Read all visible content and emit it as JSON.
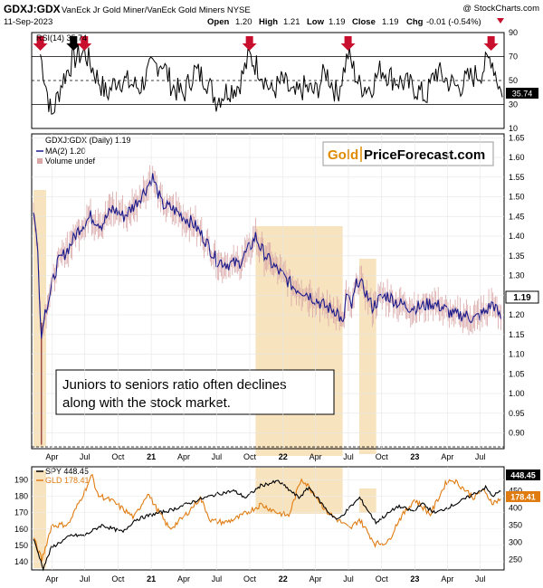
{
  "header": {
    "symbol": "GDXJ:GDX",
    "description": "VanEck Jr Gold Miner/VanEck Gold Miners NYSE",
    "date": "11-Sep-2023",
    "open_label": "Open",
    "open": "1.20",
    "high_label": "High",
    "high": "1.21",
    "low_label": "Low",
    "low": "1.19",
    "close_label": "Close",
    "close": "1.19",
    "chg_label": "Chg",
    "chg": "-0.01 (-0.54%)",
    "watermark": "@ StockCharts.com"
  },
  "colors": {
    "rsi": "#000000",
    "price": "#1a1a8c",
    "ma": "#1a1a8c",
    "bars": "#d9a5a5",
    "highlight": "#f6dfb3",
    "arrow_red": "#c8102e",
    "arrow_black": "#000000",
    "spy": "#000000",
    "gld": "#e07b10"
  },
  "logo": {
    "part1": "Gold",
    "part2": "PriceForecast.com"
  },
  "annotation": {
    "line1": "Juniors to seniors ratio often declines",
    "line2": "along with the stock market."
  },
  "x_axis": [
    "Apr",
    "Jul",
    "Oct",
    "21",
    "Apr",
    "Jul",
    "Oct",
    "22",
    "Apr",
    "Jul",
    "Oct",
    "23",
    "Apr",
    "Jul"
  ],
  "chart_data": [
    {
      "type": "line",
      "title": "RSI(14) 35.74",
      "current_label": "35.74",
      "ylim": [
        10,
        90
      ],
      "yticks": [
        10,
        30,
        50,
        70,
        90
      ],
      "reference_lines": [
        30,
        50,
        70
      ],
      "markers": [
        {
          "date": "2020-03",
          "color": "red"
        },
        {
          "date": "2020-06",
          "color": "black"
        },
        {
          "date": "2020-07",
          "color": "red"
        },
        {
          "date": "2021-10",
          "color": "red"
        },
        {
          "date": "2022-07",
          "color": "red"
        },
        {
          "date": "2023-08",
          "color": "red"
        }
      ],
      "series": [
        {
          "x": [
            "2020-03",
            "2020-04",
            "2020-05",
            "2020-06",
            "2020-07",
            "2020-08",
            "2020-09",
            "2020-10",
            "2020-11",
            "2020-12",
            "2021-01",
            "2021-02",
            "2021-03",
            "2021-04",
            "2021-05",
            "2021-06",
            "2021-07",
            "2021-08",
            "2021-09",
            "2021-10",
            "2021-11",
            "2021-12",
            "2022-01",
            "2022-02",
            "2022-03",
            "2022-04",
            "2022-05",
            "2022-06",
            "2022-07",
            "2022-08",
            "2022-09",
            "2022-10",
            "2022-11",
            "2022-12",
            "2023-01",
            "2023-02",
            "2023-03",
            "2023-04",
            "2023-05",
            "2023-06",
            "2023-07",
            "2023-08",
            "2023-09"
          ],
          "values": [
            72,
            20,
            50,
            68,
            74,
            55,
            38,
            52,
            48,
            44,
            60,
            66,
            45,
            38,
            58,
            52,
            34,
            42,
            46,
            70,
            58,
            40,
            50,
            36,
            44,
            40,
            58,
            38,
            72,
            46,
            44,
            60,
            52,
            48,
            44,
            36,
            58,
            50,
            44,
            52,
            56,
            70,
            36
          ]
        }
      ]
    },
    {
      "type": "line",
      "title": "GDXJ:GDX (Daily) 1.19",
      "legend": [
        "MA(2) 1.20",
        "Volume undef"
      ],
      "current_label": "1.19",
      "ylim": [
        0.86,
        1.66
      ],
      "yticks": [
        0.9,
        0.95,
        1.0,
        1.05,
        1.1,
        1.15,
        1.2,
        1.25,
        1.3,
        1.35,
        1.4,
        1.45,
        1.5,
        1.55,
        1.6,
        1.65
      ],
      "highlight_ranges": [
        [
          "2020-02-25",
          "2020-03-31"
        ],
        [
          "2021-11-01",
          "2022-06-30"
        ],
        [
          "2022-08-15",
          "2022-10-01"
        ]
      ],
      "series": [
        {
          "name": "MA(2) 1.20",
          "x": [
            "2020-02-25",
            "2020-03-08",
            "2020-03-18",
            "2020-03-25",
            "2020-04-10",
            "2020-05-01",
            "2020-06-01",
            "2020-07-01",
            "2020-08-01",
            "2020-09-01",
            "2020-10-01",
            "2020-11-01",
            "2020-12-01",
            "2021-01-01",
            "2021-01-20",
            "2021-02-15",
            "2021-03-15",
            "2021-04-15",
            "2021-05-15",
            "2021-06-15",
            "2021-07-15",
            "2021-08-15",
            "2021-09-15",
            "2021-10-15",
            "2021-11-01",
            "2021-11-15",
            "2021-12-15",
            "2022-01-15",
            "2022-02-15",
            "2022-03-15",
            "2022-04-15",
            "2022-05-15",
            "2022-06-15",
            "2022-07-01",
            "2022-07-10",
            "2022-07-25",
            "2022-08-10",
            "2022-09-01",
            "2022-09-20",
            "2022-10-10",
            "2022-11-01",
            "2022-12-01",
            "2023-01-01",
            "2023-02-01",
            "2023-03-01",
            "2023-04-01",
            "2023-05-01",
            "2023-06-01",
            "2023-07-01",
            "2023-08-01",
            "2023-08-20",
            "2023-09-11"
          ],
          "values": [
            1.47,
            1.36,
            1.14,
            1.2,
            1.25,
            1.33,
            1.37,
            1.42,
            1.45,
            1.43,
            1.47,
            1.45,
            1.48,
            1.52,
            1.55,
            1.48,
            1.47,
            1.45,
            1.43,
            1.39,
            1.34,
            1.33,
            1.33,
            1.37,
            1.4,
            1.37,
            1.33,
            1.3,
            1.27,
            1.26,
            1.24,
            1.22,
            1.21,
            1.17,
            1.25,
            1.22,
            1.29,
            1.26,
            1.22,
            1.24,
            1.25,
            1.23,
            1.22,
            1.22,
            1.23,
            1.22,
            1.2,
            1.2,
            1.19,
            1.21,
            1.23,
            1.19
          ]
        }
      ]
    },
    {
      "type": "line",
      "series": [
        {
          "name": "SPY 448.45",
          "axis": "right",
          "current_label": "448.45",
          "x": [
            "2020-02-25",
            "2020-03-23",
            "2020-04-15",
            "2020-06-08",
            "2020-07-15",
            "2020-09-01",
            "2020-10-30",
            "2020-12-01",
            "2021-01-15",
            "2021-03-15",
            "2021-05-15",
            "2021-07-15",
            "2021-09-01",
            "2021-10-05",
            "2021-11-15",
            "2022-01-03",
            "2022-03-01",
            "2022-03-29",
            "2022-05-20",
            "2022-06-16",
            "2022-08-16",
            "2022-09-30",
            "2022-11-30",
            "2023-01-15",
            "2023-02-02",
            "2023-03-13",
            "2023-05-15",
            "2023-07-31",
            "2023-08-18",
            "2023-09-11"
          ],
          "values": [
            310,
            225,
            285,
            320,
            320,
            350,
            330,
            365,
            380,
            395,
            420,
            440,
            450,
            430,
            465,
            478,
            430,
            460,
            390,
            365,
            430,
            358,
            405,
            390,
            415,
            385,
            415,
            460,
            435,
            448.45
          ]
        },
        {
          "name": "GLD 178.41",
          "axis": "left",
          "current_label": "178.41",
          "x": [
            "2020-02-25",
            "2020-03-19",
            "2020-04-15",
            "2020-06-01",
            "2020-08-06",
            "2020-08-20",
            "2020-09-30",
            "2020-11-30",
            "2021-01-06",
            "2021-02-01",
            "2021-03-08",
            "2021-04-15",
            "2021-06-01",
            "2021-06-30",
            "2021-08-09",
            "2021-09-15",
            "2021-11-16",
            "2022-01-01",
            "2022-02-01",
            "2022-03-08",
            "2022-04-15",
            "2022-05-15",
            "2022-07-21",
            "2022-08-15",
            "2022-09-28",
            "2022-11-03",
            "2022-12-01",
            "2023-01-15",
            "2023-02-28",
            "2023-04-14",
            "2023-05-03",
            "2023-06-30",
            "2023-07-20",
            "2023-08-21",
            "2023-09-11"
          ],
          "values": [
            155,
            141,
            162,
            163,
            193,
            181,
            177,
            167,
            182,
            172,
            160,
            167,
            179,
            165,
            164,
            167,
            175,
            170,
            168,
            191,
            181,
            171,
            160,
            166,
            151,
            152,
            165,
            178,
            169,
            189,
            190,
            179,
            184,
            176,
            178.41
          ]
        }
      ],
      "left_axis": {
        "ylim": [
          135,
          198
        ],
        "yticks": [
          140,
          150,
          160,
          170,
          180,
          190
        ]
      },
      "right_axis": {
        "ylim": [
          220,
          520
        ],
        "yticks": [
          250,
          300,
          350,
          400,
          450
        ]
      },
      "highlight_ranges": [
        [
          "2020-02-25",
          "2020-03-31"
        ],
        [
          "2021-11-01",
          "2022-06-30"
        ],
        [
          "2022-08-15",
          "2022-10-01"
        ]
      ]
    }
  ]
}
